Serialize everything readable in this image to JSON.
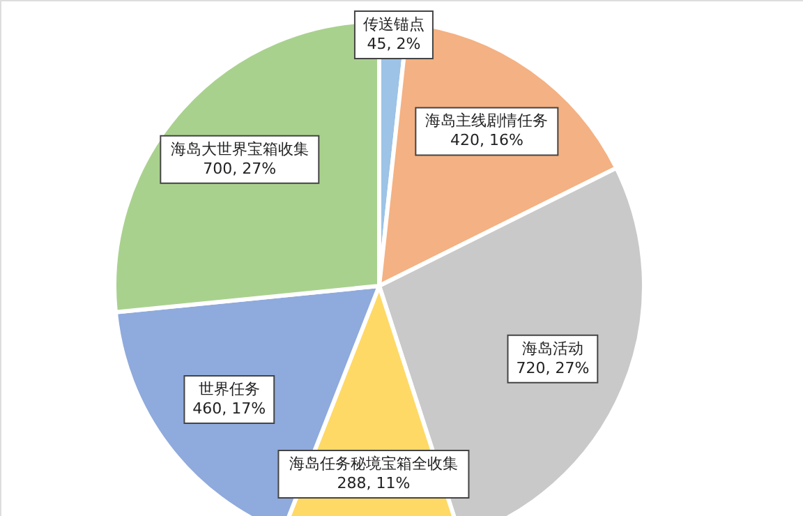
{
  "chart_data": {
    "type": "pie",
    "categories": [
      "传送锚点",
      "海岛主线剧情任务",
      "海岛活动",
      "海岛任务秘境宝箱全收集",
      "世界任务",
      "海岛大世界宝箱收集"
    ],
    "values": [
      45,
      420,
      720,
      288,
      460,
      700
    ],
    "colors": [
      "#9dc3e6",
      "#f4b183",
      "#c9c9c9",
      "#ffd966",
      "#8faadc",
      "#a9d18e"
    ],
    "value_labels": [
      "45, 2%",
      "420, 16%",
      "720, 27%",
      "288, 11%",
      "460, 17%",
      "700, 27%"
    ]
  }
}
